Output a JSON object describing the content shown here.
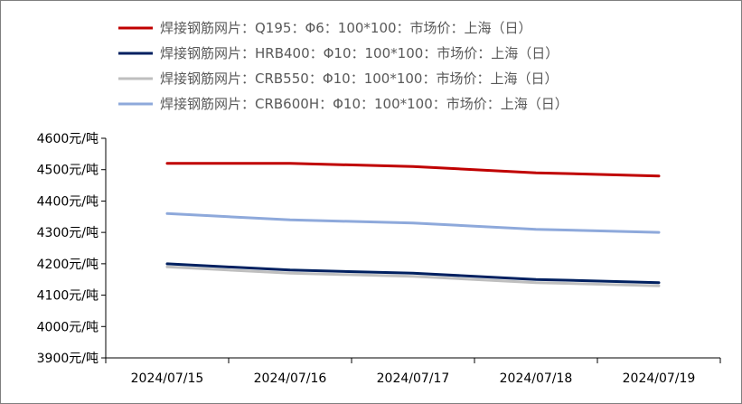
{
  "chart_data": {
    "type": "line",
    "title": "",
    "xlabel": "",
    "ylabel": "",
    "categories": [
      "2024/07/15",
      "2024/07/16",
      "2024/07/17",
      "2024/07/18",
      "2024/07/19"
    ],
    "ylim": [
      3900,
      4600
    ],
    "yticks": [
      {
        "value": 4600,
        "label": "4600元/吨"
      },
      {
        "value": 4500,
        "label": "4500元/吨"
      },
      {
        "value": 4400,
        "label": "4400元/吨"
      },
      {
        "value": 4300,
        "label": "4300元/吨"
      },
      {
        "value": 4200,
        "label": "4200元/吨"
      },
      {
        "value": 4100,
        "label": "4100元/吨"
      },
      {
        "value": 4000,
        "label": "4000元/吨"
      },
      {
        "value": 3900,
        "label": "3900元/吨"
      }
    ],
    "grid": false,
    "legend_position": "top",
    "series": [
      {
        "name": "焊接钢筋网片：Q195：Φ6：100*100：市场价：上海（日）",
        "color": "#C00000",
        "values": [
          4520,
          4520,
          4510,
          4490,
          4480
        ]
      },
      {
        "name": "焊接钢筋网片：HRB400：Φ10：100*100：市场价：上海（日）",
        "color": "#002060",
        "values": [
          4200,
          4180,
          4170,
          4150,
          4140
        ]
      },
      {
        "name": "焊接钢筋网片：CRB550：Φ10：100*100：市场价：上海（日）",
        "color": "#BFBFBF",
        "values": [
          4190,
          4170,
          4160,
          4140,
          4130
        ]
      },
      {
        "name": "焊接钢筋网片：CRB600H：Φ10：100*100：市场价：上海（日）",
        "color": "#8EA9DB",
        "values": [
          4360,
          4340,
          4330,
          4310,
          4300
        ]
      }
    ]
  }
}
